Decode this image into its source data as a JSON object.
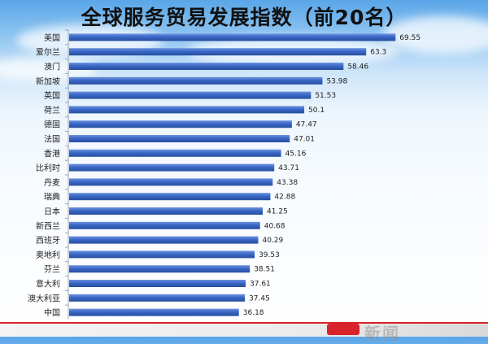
{
  "chart_data": {
    "type": "bar",
    "orientation": "horizontal",
    "title": "全球服务贸易发展指数（前20名）",
    "categories": [
      "美国",
      "爱尔兰",
      "澳门",
      "新加坡",
      "英国",
      "荷兰",
      "德国",
      "法国",
      "香港",
      "比利时",
      "丹麦",
      "瑞典",
      "日本",
      "新西兰",
      "西班牙",
      "奥地利",
      "芬兰",
      "意大利",
      "澳大利亚",
      "中国"
    ],
    "values": [
      69.55,
      63.3,
      58.46,
      53.98,
      51.53,
      50.1,
      47.47,
      47.01,
      45.16,
      43.71,
      43.38,
      42.88,
      41.25,
      40.68,
      40.29,
      39.53,
      38.51,
      37.61,
      37.45,
      36.18
    ],
    "value_labels": [
      "69.55",
      "63.3",
      "58.46",
      "53.98",
      "51.53",
      "50.1",
      "47.47",
      "47.01",
      "45.16",
      "43.71",
      "43.38",
      "42.88",
      "41.25",
      "40.68",
      "40.29",
      "39.53",
      "38.51",
      "37.61",
      "37.45",
      "36.18"
    ],
    "xlim": [
      0,
      80
    ],
    "grid": false,
    "legend": "none",
    "bar_color": "#3a66c6"
  },
  "watermark": "新闻"
}
